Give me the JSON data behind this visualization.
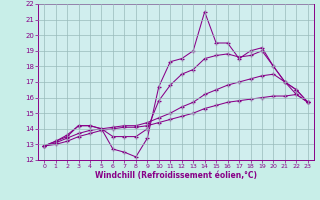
{
  "xlabel": "Windchill (Refroidissement éolien,°C)",
  "bg_color": "#bbeebb",
  "plot_bg_color": "#cceedd",
  "line_color": "#880088",
  "grid_color": "#99bbbb",
  "xlim": [
    -0.5,
    23.5
  ],
  "ylim": [
    12,
    22
  ],
  "xticks": [
    0,
    1,
    2,
    3,
    4,
    5,
    6,
    7,
    8,
    9,
    10,
    11,
    12,
    13,
    14,
    15,
    16,
    17,
    18,
    19,
    20,
    21,
    22,
    23
  ],
  "yticks": [
    12,
    13,
    14,
    15,
    16,
    17,
    18,
    19,
    20,
    21,
    22
  ],
  "series": [
    [
      12.9,
      13.2,
      13.6,
      14.2,
      14.2,
      14.0,
      12.7,
      12.5,
      12.2,
      13.4,
      16.7,
      18.3,
      18.5,
      19.0,
      21.5,
      19.5,
      19.5,
      18.5,
      19.0,
      19.2,
      18.0,
      17.0,
      16.2,
      15.7
    ],
    [
      12.9,
      13.2,
      13.5,
      14.2,
      14.2,
      14.0,
      13.5,
      13.5,
      13.5,
      14.0,
      15.8,
      16.8,
      17.5,
      17.8,
      18.5,
      18.7,
      18.8,
      18.6,
      18.7,
      19.0,
      18.0,
      17.0,
      16.5,
      15.7
    ],
    [
      12.9,
      13.1,
      13.4,
      13.7,
      13.9,
      14.0,
      14.1,
      14.2,
      14.2,
      14.4,
      14.7,
      15.0,
      15.4,
      15.7,
      16.2,
      16.5,
      16.8,
      17.0,
      17.2,
      17.4,
      17.5,
      17.0,
      16.5,
      15.7
    ],
    [
      12.9,
      13.0,
      13.2,
      13.5,
      13.7,
      13.9,
      14.0,
      14.1,
      14.1,
      14.2,
      14.4,
      14.6,
      14.8,
      15.0,
      15.3,
      15.5,
      15.7,
      15.8,
      15.9,
      16.0,
      16.1,
      16.1,
      16.2,
      15.7
    ]
  ]
}
